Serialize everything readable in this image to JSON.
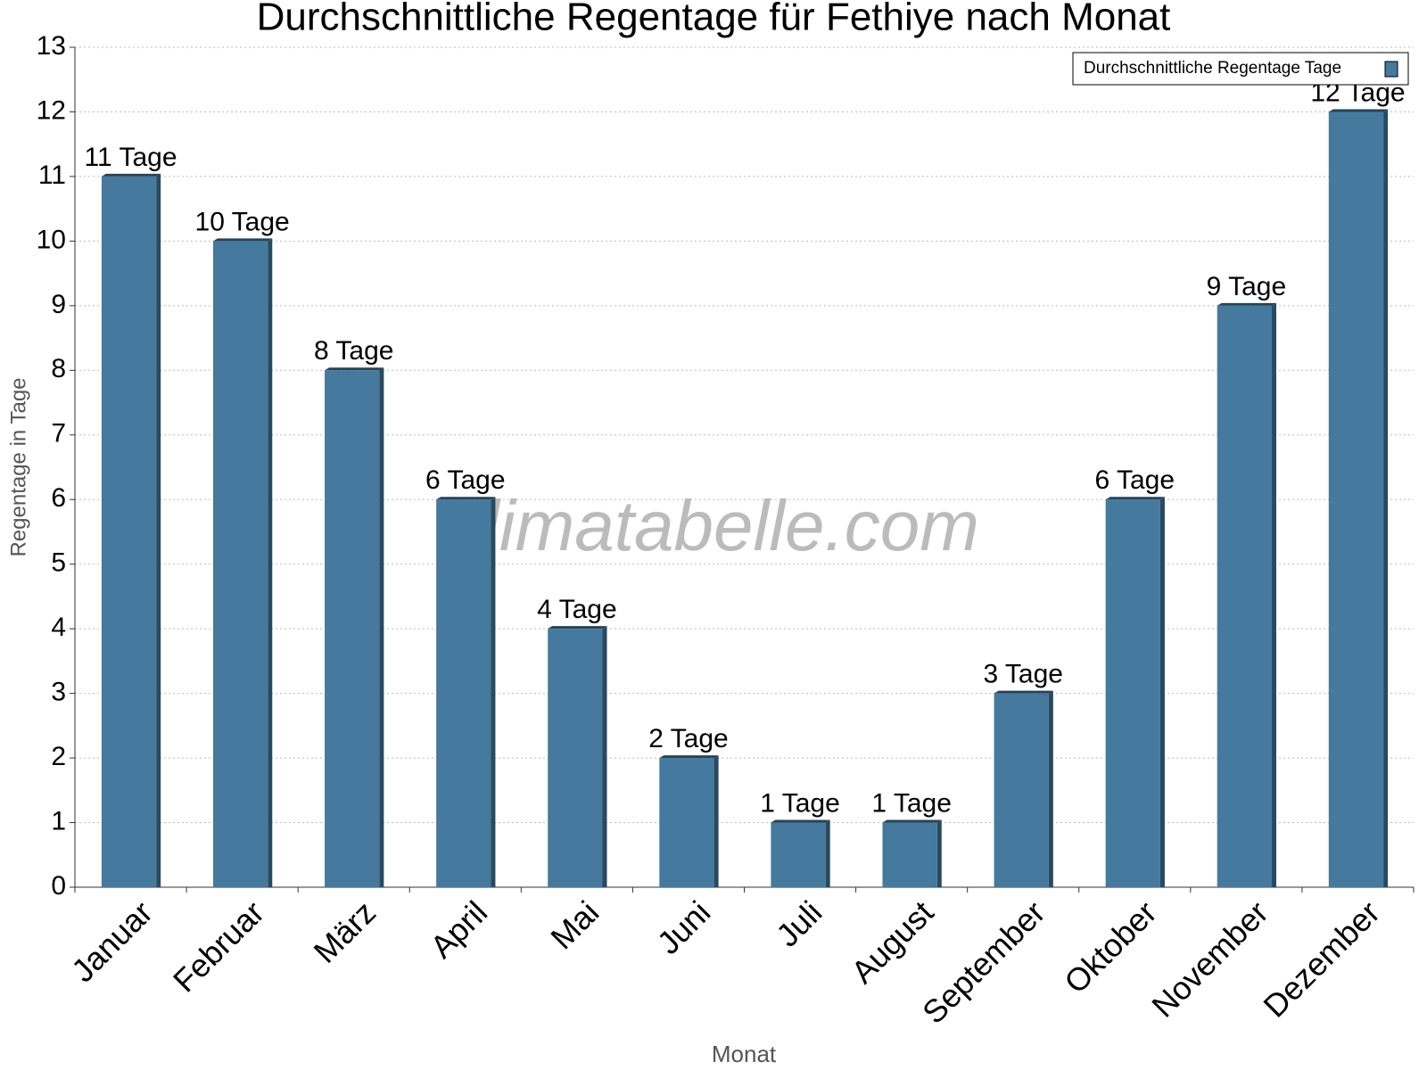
{
  "chart_data": {
    "type": "bar",
    "title": "Durchschnittliche Regentage für Fethiye nach Monat",
    "x_label": "Monat",
    "y_label": "Regentage in Tage",
    "watermark": "klimatabelle.com",
    "categories": [
      "Januar",
      "Februar",
      "März",
      "April",
      "Mai",
      "Juni",
      "Juli",
      "August",
      "September",
      "Oktober",
      "November",
      "Dezember"
    ],
    "series": [
      {
        "name": "Durchschnittliche Regentage Tage",
        "color": "#45799e",
        "values": [
          11,
          10,
          8,
          6,
          4,
          2,
          1,
          1,
          3,
          6,
          9,
          12
        ],
        "value_labels": [
          "11 Tage",
          "10 Tage",
          "8 Tage",
          "6 Tage",
          "4 Tage",
          "2 Tage",
          "1 Tage",
          "1 Tage",
          "3 Tage",
          "6 Tage",
          "9 Tage",
          "12 Tage"
        ]
      }
    ],
    "ylim": [
      0,
      13
    ],
    "yticks": [
      0,
      1,
      2,
      3,
      4,
      5,
      6,
      7,
      8,
      9,
      10,
      11,
      12,
      13
    ],
    "grid": true,
    "legend": "top-right"
  }
}
